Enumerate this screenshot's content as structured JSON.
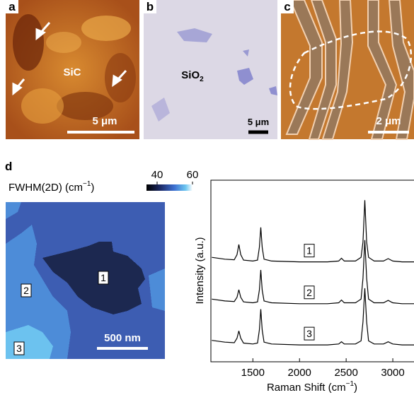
{
  "panels": {
    "a": {
      "label": "a",
      "sample": "SiC",
      "scale_bar": "5 μm"
    },
    "b": {
      "label": "b",
      "sample": {
        "text": "SiO",
        "sub": "2"
      },
      "scale_bar": "5 μm"
    },
    "c": {
      "label": "c",
      "scale_bar": "2 μm"
    }
  },
  "panel_d": {
    "label": "d",
    "colorbar": {
      "label": {
        "text": "FWHM(2D) (cm",
        "sup": "−1",
        "end": ")"
      },
      "lim": [
        34,
        60
      ],
      "ticks": [
        40,
        60
      ]
    },
    "map": {
      "regions": [
        "1",
        "2",
        "3"
      ],
      "scale_bar": "500 nm"
    }
  },
  "chart_data": {
    "type": "line",
    "xlabel": {
      "text": "Raman Shift (cm",
      "sup": "−1",
      "end": ")"
    },
    "ylabel": "Intensity (a.u.)",
    "x": [
      1060,
      1200,
      1300,
      1330,
      1350,
      1370,
      1400,
      1500,
      1550,
      1570,
      1585,
      1600,
      1620,
      1700,
      2000,
      2300,
      2420,
      2450,
      2480,
      2600,
      2660,
      2680,
      2700,
      2720,
      2740,
      2800,
      2900,
      2950,
      3000,
      3100,
      3250
    ],
    "series": [
      {
        "name": "1",
        "color": "#000000",
        "values": [
          5.75,
          5.65,
          5.62,
          5.9,
          6.46,
          5.9,
          5.6,
          5.55,
          5.6,
          6.3,
          7.4,
          6.3,
          5.65,
          5.55,
          5.5,
          5.5,
          5.55,
          5.7,
          5.55,
          5.55,
          5.75,
          6.6,
          8.9,
          6.6,
          5.75,
          5.55,
          5.55,
          5.68,
          5.55,
          5.5,
          5.5
        ]
      },
      {
        "name": "2",
        "color": "#000000",
        "values": [
          3.45,
          3.35,
          3.32,
          3.55,
          3.97,
          3.55,
          3.3,
          3.25,
          3.3,
          3.95,
          5.06,
          3.95,
          3.35,
          3.25,
          3.2,
          3.2,
          3.25,
          3.4,
          3.25,
          3.25,
          3.45,
          4.6,
          6.7,
          4.6,
          3.45,
          3.25,
          3.25,
          3.38,
          3.25,
          3.2,
          3.2
        ]
      },
      {
        "name": "3",
        "color": "#000000",
        "values": [
          1.18,
          1.08,
          1.05,
          1.3,
          1.7,
          1.3,
          1.03,
          0.98,
          1.03,
          1.75,
          2.9,
          1.75,
          1.08,
          0.98,
          0.93,
          0.93,
          0.98,
          1.1,
          0.98,
          0.98,
          1.15,
          2.2,
          4.05,
          2.2,
          1.15,
          0.98,
          0.98,
          1.1,
          0.98,
          0.93,
          0.93
        ]
      }
    ],
    "xlim": [
      1050,
      3250
    ],
    "ylim": [
      0,
      10
    ],
    "xticks": [
      1500,
      2000,
      2500,
      3000
    ]
  }
}
